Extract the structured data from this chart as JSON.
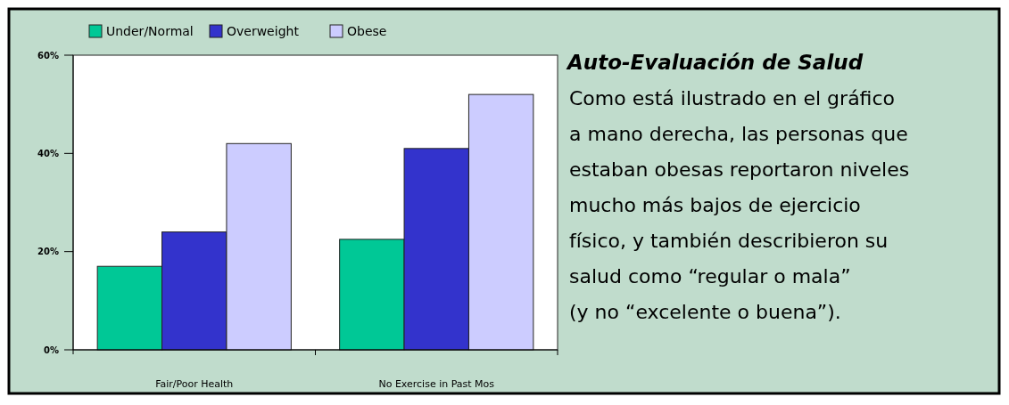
{
  "chart_data": {
    "type": "bar",
    "title": "Auto-Evaluación de Salud",
    "categories": [
      "Fair/Poor Health",
      "No Exercise in Past Mos"
    ],
    "series": [
      {
        "name": "Under/Normal",
        "color": "#00c896",
        "values": [
          17,
          22.5
        ]
      },
      {
        "name": "Overweight",
        "color": "#3333cc",
        "values": [
          24,
          41
        ]
      },
      {
        "name": "Obese",
        "color": "#ccccff",
        "values": [
          42,
          52
        ]
      }
    ],
    "ylim": [
      0,
      60
    ],
    "yticks": [
      {
        "value": 0,
        "label": "0%"
      },
      {
        "value": 20,
        "label": "20%"
      },
      {
        "value": 40,
        "label": "40%"
      },
      {
        "value": 60,
        "label": "60%"
      }
    ],
    "legend": "top",
    "annotations": [
      "Como está ilustrado en el gráfico",
      "a mano derecha, las personas que",
      "estaban obesas reportaron niveles",
      "mucho más bajos de ejercicio",
      "físico, y también describieron su",
      "salud como “regular o mala”",
      "(y no “excelente o buena”)."
    ]
  }
}
